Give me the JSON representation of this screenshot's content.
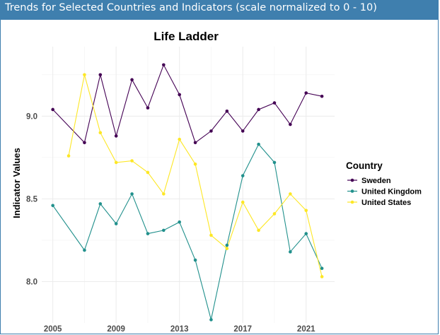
{
  "panel": {
    "title": "Trends for Selected Countries and Indicators (scale normalized to 0 - 10)"
  },
  "chart_data": {
    "type": "line",
    "title": "Life Ladder",
    "xlabel": "",
    "ylabel": "Indicator Values",
    "legend_title": "Country",
    "legend_position": "right",
    "grid": true,
    "xlim": [
      2004.3,
      2022.8
    ],
    "ylim": [
      7.75,
      9.42
    ],
    "x_ticks": [
      2005,
      2009,
      2013,
      2017,
      2021
    ],
    "y_ticks": [
      8.0,
      8.5,
      9.0
    ],
    "y_tick_labels": [
      "8.0",
      "8.5",
      "9.0"
    ],
    "series": [
      {
        "name": "Sweden",
        "color": "#440154",
        "points": [
          [
            2005,
            9.04
          ],
          [
            2007,
            8.84
          ],
          [
            2008,
            9.25
          ],
          [
            2009,
            8.88
          ],
          [
            2010,
            9.22
          ],
          [
            2011,
            9.05
          ],
          [
            2012,
            9.31
          ],
          [
            2013,
            9.13
          ],
          [
            2014,
            8.84
          ],
          [
            2015,
            8.91
          ],
          [
            2016,
            9.03
          ],
          [
            2017,
            8.91
          ],
          [
            2018,
            9.04
          ],
          [
            2019,
            9.08
          ],
          [
            2020,
            8.95
          ],
          [
            2021,
            9.14
          ],
          [
            2022,
            9.12
          ]
        ]
      },
      {
        "name": "United Kingdom",
        "color": "#21908c",
        "points": [
          [
            2005,
            8.46
          ],
          [
            2007,
            8.19
          ],
          [
            2008,
            8.47
          ],
          [
            2009,
            8.35
          ],
          [
            2010,
            8.53
          ],
          [
            2011,
            8.29
          ],
          [
            2012,
            8.31
          ],
          [
            2013,
            8.36
          ],
          [
            2014,
            8.13
          ],
          [
            2015,
            7.77
          ],
          [
            2016,
            8.22
          ],
          [
            2017,
            8.64
          ],
          [
            2018,
            8.83
          ],
          [
            2019,
            8.72
          ],
          [
            2020,
            8.18
          ],
          [
            2021,
            8.29
          ],
          [
            2022,
            8.08
          ]
        ]
      },
      {
        "name": "United States",
        "color": "#fde725",
        "points": [
          [
            2006,
            8.76
          ],
          [
            2007,
            9.25
          ],
          [
            2008,
            8.9
          ],
          [
            2009,
            8.72
          ],
          [
            2010,
            8.73
          ],
          [
            2011,
            8.66
          ],
          [
            2012,
            8.53
          ],
          [
            2013,
            8.86
          ],
          [
            2014,
            8.71
          ],
          [
            2015,
            8.28
          ],
          [
            2016,
            8.2
          ],
          [
            2017,
            8.48
          ],
          [
            2018,
            8.31
          ],
          [
            2019,
            8.41
          ],
          [
            2020,
            8.53
          ],
          [
            2021,
            8.43
          ],
          [
            2022,
            8.03
          ]
        ]
      }
    ]
  }
}
